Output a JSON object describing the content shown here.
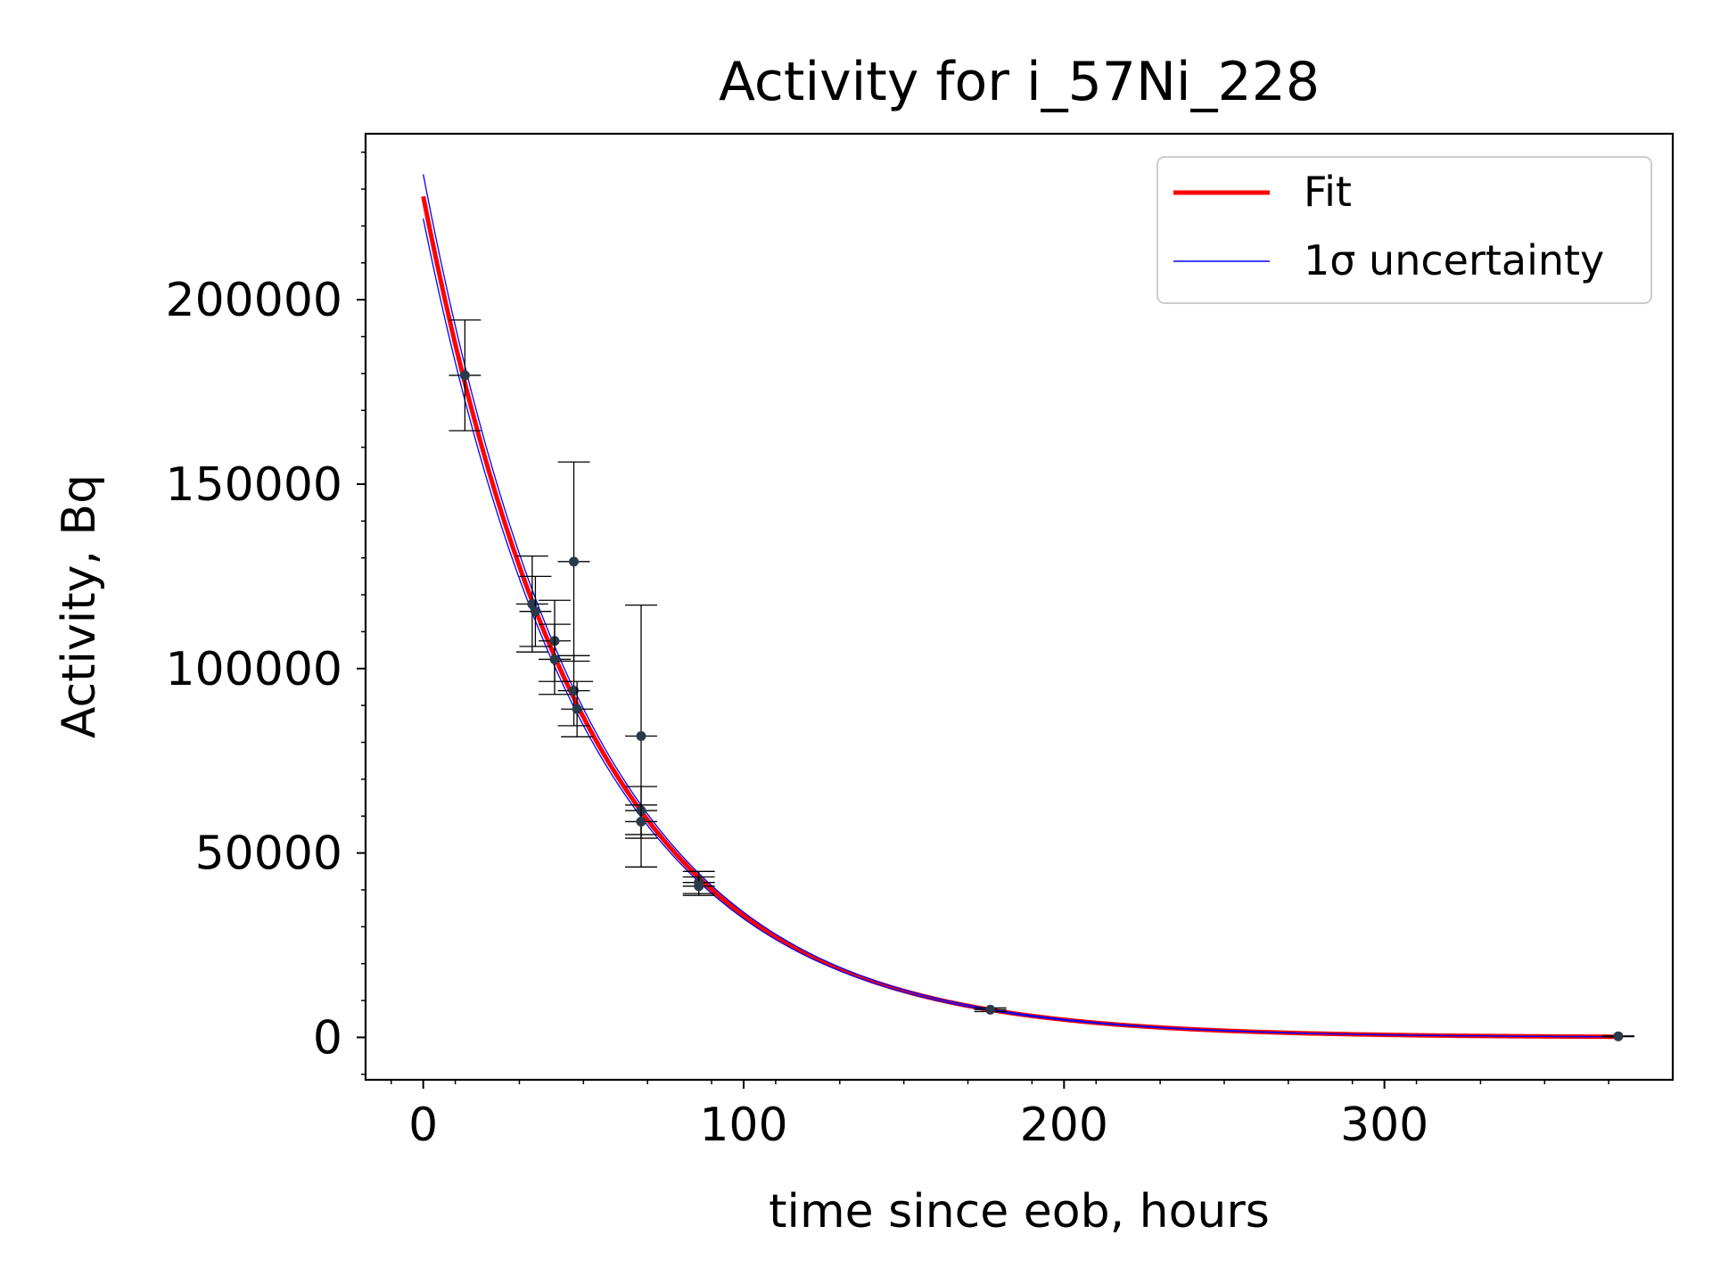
{
  "chart_data": {
    "type": "scatter",
    "title": "Activity for i_57Ni_228",
    "xlabel": "time since eob, hours",
    "ylabel": "Activity, Bq",
    "xlim": [
      -18,
      390
    ],
    "ylim": [
      -11500,
      245000
    ],
    "xticks": [
      0,
      100,
      200,
      300
    ],
    "xtick_labels": [
      "0",
      "100",
      "200",
      "300"
    ],
    "yticks": [
      0,
      50000,
      100000,
      150000,
      200000
    ],
    "ytick_labels": [
      "0",
      "50000",
      "100000",
      "150000",
      "200000"
    ],
    "grid": false,
    "legend_position": "top-right",
    "legend": [
      {
        "label": "Fit",
        "color": "#ff0000"
      },
      {
        "label": "1σ uncertainty",
        "color": "#0000ff"
      }
    ],
    "fit": {
      "model": "exponential_decay",
      "A0": 228000,
      "half_life_hours": 35.9,
      "x_range": [
        0,
        373
      ],
      "uncertainty_A0": [
        222000,
        234000
      ]
    },
    "series": [
      {
        "name": "data",
        "color": "#2b3a4a",
        "points": [
          {
            "x": 13,
            "y": 179500,
            "yerr": 15000,
            "xerr": 5
          },
          {
            "x": 34,
            "y": 117500,
            "yerr": 13000,
            "xerr": 5
          },
          {
            "x": 35,
            "y": 115500,
            "yerr": 9500,
            "xerr": 5
          },
          {
            "x": 41,
            "y": 107500,
            "yerr": 11000,
            "xerr": 5
          },
          {
            "x": 41,
            "y": 102500,
            "yerr": 9500,
            "xerr": 5
          },
          {
            "x": 47,
            "y": 129000,
            "yerr": 27000,
            "xerr": 5
          },
          {
            "x": 47,
            "y": 94000,
            "yerr": 9500,
            "xerr": 5
          },
          {
            "x": 48,
            "y": 89000,
            "yerr": 7500,
            "xerr": 5
          },
          {
            "x": 68,
            "y": 81700,
            "yerr": 35500,
            "xerr": 5
          },
          {
            "x": 68,
            "y": 61500,
            "yerr": 6500,
            "xerr": 5
          },
          {
            "x": 68,
            "y": 58500,
            "yerr": 4500,
            "xerr": 5
          },
          {
            "x": 86,
            "y": 42000,
            "yerr": 3000,
            "xerr": 5
          },
          {
            "x": 86,
            "y": 41000,
            "yerr": 2500,
            "xerr": 5
          },
          {
            "x": 177,
            "y": 7500,
            "yerr": 500,
            "xerr": 5
          },
          {
            "x": 373,
            "y": 300,
            "yerr": 100,
            "xerr": 5
          }
        ]
      }
    ]
  }
}
